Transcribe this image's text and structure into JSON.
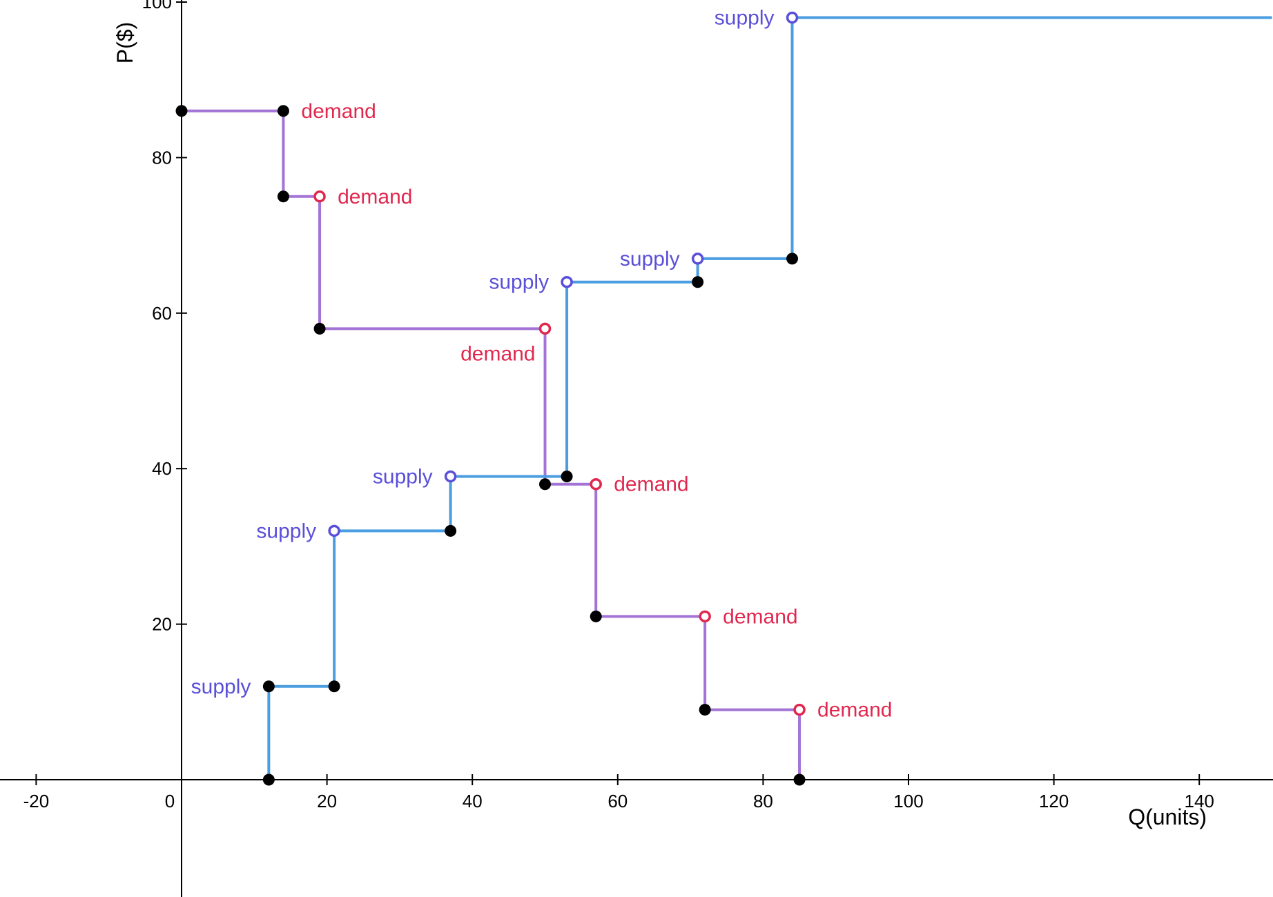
{
  "chart_data": {
    "type": "line",
    "xlabel": "Q(units)",
    "ylabel": "P($)",
    "xlim": [
      -25,
      150
    ],
    "ylim": [
      -15,
      100
    ],
    "x_ticks": [
      -20,
      0,
      20,
      40,
      60,
      80,
      100,
      120,
      140
    ],
    "y_ticks": [
      20,
      40,
      60,
      80,
      100
    ],
    "grid": false,
    "colors": {
      "supply_line": "#4a9de0",
      "demand_line": "#a374d5",
      "supply_text": "#5a4fd9",
      "demand_text": "#e0284f",
      "filled_point": "#000000"
    },
    "series": [
      {
        "name": "supply",
        "steps": [
          {
            "x": [
              12,
              21
            ],
            "y": 12
          },
          {
            "x": [
              21,
              37
            ],
            "y": 32
          },
          {
            "x": [
              37,
              53
            ],
            "y": 39
          },
          {
            "x": [
              53,
              71
            ],
            "y": 64
          },
          {
            "x": [
              71,
              84
            ],
            "y": 67
          },
          {
            "x": [
              84,
              150
            ],
            "y": 98
          }
        ],
        "start": {
          "x": 12,
          "y": 0
        }
      },
      {
        "name": "demand",
        "steps": [
          {
            "x": [
              0,
              14
            ],
            "y": 86
          },
          {
            "x": [
              14,
              19
            ],
            "y": 75
          },
          {
            "x": [
              19,
              50
            ],
            "y": 58
          },
          {
            "x": [
              50,
              57
            ],
            "y": 38
          },
          {
            "x": [
              57,
              72
            ],
            "y": 21
          },
          {
            "x": [
              72,
              85
            ],
            "y": 9
          }
        ],
        "end": {
          "x": 85,
          "y": 0
        }
      }
    ],
    "points": [
      {
        "x": 12,
        "y": 0,
        "style": "filled"
      },
      {
        "x": 12,
        "y": 12,
        "style": "filled"
      },
      {
        "x": 21,
        "y": 12,
        "style": "filled"
      },
      {
        "x": 21,
        "y": 32,
        "style": "open-supply"
      },
      {
        "x": 37,
        "y": 32,
        "style": "filled"
      },
      {
        "x": 37,
        "y": 39,
        "style": "open-supply"
      },
      {
        "x": 53,
        "y": 39,
        "style": "filled"
      },
      {
        "x": 53,
        "y": 64,
        "style": "open-supply"
      },
      {
        "x": 71,
        "y": 64,
        "style": "filled"
      },
      {
        "x": 71,
        "y": 67,
        "style": "open-supply"
      },
      {
        "x": 84,
        "y": 67,
        "style": "filled"
      },
      {
        "x": 84,
        "y": 98,
        "style": "open-supply"
      },
      {
        "x": 0,
        "y": 86,
        "style": "filled"
      },
      {
        "x": 14,
        "y": 86,
        "style": "filled"
      },
      {
        "x": 14,
        "y": 75,
        "style": "filled"
      },
      {
        "x": 19,
        "y": 75,
        "style": "open-demand"
      },
      {
        "x": 19,
        "y": 58,
        "style": "filled"
      },
      {
        "x": 50,
        "y": 58,
        "style": "open-demand"
      },
      {
        "x": 50,
        "y": 38,
        "style": "filled"
      },
      {
        "x": 57,
        "y": 38,
        "style": "open-demand"
      },
      {
        "x": 57,
        "y": 21,
        "style": "filled"
      },
      {
        "x": 72,
        "y": 21,
        "style": "open-demand"
      },
      {
        "x": 72,
        "y": 9,
        "style": "filled"
      },
      {
        "x": 85,
        "y": 9,
        "style": "open-demand"
      },
      {
        "x": 85,
        "y": 0,
        "style": "filled"
      }
    ],
    "annotations": [
      {
        "text": "supply",
        "series": "supply",
        "x": 12,
        "y": 12,
        "side": "left"
      },
      {
        "text": "supply",
        "series": "supply",
        "x": 21,
        "y": 32,
        "side": "left"
      },
      {
        "text": "supply",
        "series": "supply",
        "x": 37,
        "y": 39,
        "side": "left"
      },
      {
        "text": "supply",
        "series": "supply",
        "x": 53,
        "y": 64,
        "side": "left"
      },
      {
        "text": "supply",
        "series": "supply",
        "x": 71,
        "y": 67,
        "side": "left"
      },
      {
        "text": "supply",
        "series": "supply",
        "x": 84,
        "y": 98,
        "side": "left"
      },
      {
        "text": "demand",
        "series": "demand",
        "x": 14,
        "y": 86,
        "side": "right"
      },
      {
        "text": "demand",
        "series": "demand",
        "x": 19,
        "y": 75,
        "side": "right"
      },
      {
        "text": "demand",
        "series": "demand",
        "x": 50,
        "y": 58,
        "side": "below-left"
      },
      {
        "text": "demand",
        "series": "demand",
        "x": 57,
        "y": 38,
        "side": "right"
      },
      {
        "text": "demand",
        "series": "demand",
        "x": 72,
        "y": 21,
        "side": "right"
      },
      {
        "text": "demand",
        "series": "demand",
        "x": 85,
        "y": 9,
        "side": "right"
      }
    ]
  }
}
